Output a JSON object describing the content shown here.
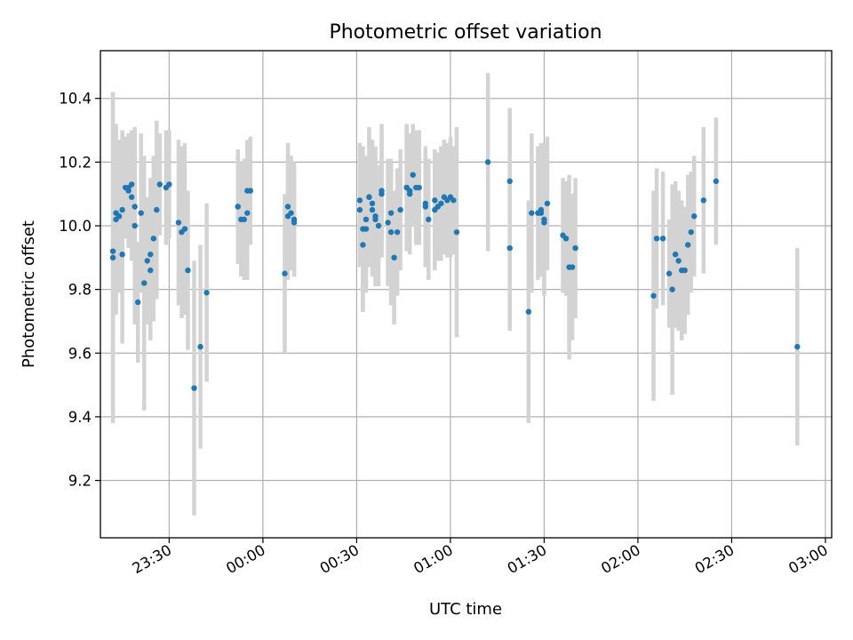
{
  "chart_data": {
    "type": "scatter",
    "title": "Photometric offset variation",
    "xlabel": "UTC time",
    "ylabel": "Photometric offset",
    "x_unit": "UTC time of day",
    "xlim": [
      "23:08",
      "03:02"
    ],
    "ylim": [
      9.02,
      10.55
    ],
    "x_ticks": [
      "23:30",
      "00:00",
      "00:30",
      "01:00",
      "01:30",
      "02:00",
      "02:30",
      "03:00"
    ],
    "y_ticks": [
      "9.2",
      "9.4",
      "9.6",
      "9.8",
      "10.0",
      "10.2",
      "10.4"
    ],
    "y_tick_values": [
      9.2,
      9.4,
      9.6,
      9.8,
      10.0,
      10.2,
      10.4
    ],
    "grid": true,
    "colors": {
      "marker": "#1f77b4",
      "errorbar": "#d3d3d3",
      "grid": "#b0b0b0"
    },
    "series": [
      {
        "marker": "dot",
        "error_bars": "vertical",
        "points": [
          {
            "x": "23:12",
            "y": 9.9,
            "err": 0.52
          },
          {
            "x": "23:12",
            "y": 9.92,
            "err": 0.5
          },
          {
            "x": "23:13",
            "y": 10.02,
            "err": 0.3
          },
          {
            "x": "23:13",
            "y": 10.04,
            "err": 0.26
          },
          {
            "x": "23:14",
            "y": 10.03,
            "err": 0.24
          },
          {
            "x": "23:15",
            "y": 9.91,
            "err": 0.28
          },
          {
            "x": "23:15",
            "y": 10.05,
            "err": 0.25
          },
          {
            "x": "23:16",
            "y": 10.12,
            "err": 0.16
          },
          {
            "x": "23:17",
            "y": 10.12,
            "err": 0.17
          },
          {
            "x": "23:17",
            "y": 10.11,
            "err": 0.18
          },
          {
            "x": "23:18",
            "y": 10.09,
            "err": 0.2
          },
          {
            "x": "23:18",
            "y": 10.13,
            "err": 0.17
          },
          {
            "x": "23:19",
            "y": 10.06,
            "err": 0.24
          },
          {
            "x": "23:19",
            "y": 10.0,
            "err": 0.31
          },
          {
            "x": "23:20",
            "y": 9.76,
            "err": 0.19
          },
          {
            "x": "23:21",
            "y": 10.04,
            "err": 0.25
          },
          {
            "x": "23:22",
            "y": 9.82,
            "err": 0.4
          },
          {
            "x": "23:23",
            "y": 9.89,
            "err": 0.2
          },
          {
            "x": "23:24",
            "y": 9.86,
            "err": 0.22
          },
          {
            "x": "23:24",
            "y": 9.91,
            "err": 0.24
          },
          {
            "x": "23:25",
            "y": 9.96,
            "err": 0.26
          },
          {
            "x": "23:26",
            "y": 10.05,
            "err": 0.28
          },
          {
            "x": "23:27",
            "y": 10.13,
            "err": 0.16
          },
          {
            "x": "23:29",
            "y": 10.12,
            "err": 0.18
          },
          {
            "x": "23:30",
            "y": 10.13,
            "err": 0.17
          },
          {
            "x": "23:33",
            "y": 10.01,
            "err": 0.26
          },
          {
            "x": "23:34",
            "y": 9.98,
            "err": 0.27
          },
          {
            "x": "23:35",
            "y": 9.99,
            "err": 0.27
          },
          {
            "x": "23:36",
            "y": 9.86,
            "err": 0.25
          },
          {
            "x": "23:38",
            "y": 9.49,
            "err": 0.4
          },
          {
            "x": "23:40",
            "y": 9.62,
            "err": 0.32
          },
          {
            "x": "23:42",
            "y": 9.79,
            "err": 0.28
          },
          {
            "x": "23:52",
            "y": 10.06,
            "err": 0.18
          },
          {
            "x": "23:52",
            "y": 10.06,
            "err": 0.18
          },
          {
            "x": "23:53",
            "y": 10.02,
            "err": 0.18
          },
          {
            "x": "23:54",
            "y": 10.02,
            "err": 0.19
          },
          {
            "x": "23:55",
            "y": 10.04,
            "err": 0.21
          },
          {
            "x": "23:55",
            "y": 10.11,
            "err": 0.16
          },
          {
            "x": "23:56",
            "y": 10.11,
            "err": 0.17
          },
          {
            "x": "00:07",
            "y": 9.85,
            "err": 0.25
          },
          {
            "x": "00:08",
            "y": 10.03,
            "err": 0.2
          },
          {
            "x": "00:08",
            "y": 10.06,
            "err": 0.2
          },
          {
            "x": "00:09",
            "y": 10.04,
            "err": 0.18
          },
          {
            "x": "00:10",
            "y": 10.02,
            "err": 0.18
          },
          {
            "x": "00:10",
            "y": 10.01,
            "err": 0.17
          },
          {
            "x": "00:31",
            "y": 10.08,
            "err": 0.18
          },
          {
            "x": "00:31",
            "y": 10.05,
            "err": 0.18
          },
          {
            "x": "00:32",
            "y": 9.94,
            "err": 0.21
          },
          {
            "x": "00:32",
            "y": 9.99,
            "err": 0.26
          },
          {
            "x": "00:33",
            "y": 9.99,
            "err": 0.2
          },
          {
            "x": "00:33",
            "y": 10.02,
            "err": 0.2
          },
          {
            "x": "00:34",
            "y": 10.09,
            "err": 0.2
          },
          {
            "x": "00:34",
            "y": 10.09,
            "err": 0.22
          },
          {
            "x": "00:35",
            "y": 10.07,
            "err": 0.2
          },
          {
            "x": "00:35",
            "y": 10.05,
            "err": 0.21
          },
          {
            "x": "00:36",
            "y": 10.02,
            "err": 0.19
          },
          {
            "x": "00:36",
            "y": 10.03,
            "err": 0.22
          },
          {
            "x": "00:37",
            "y": 10.0,
            "err": 0.19
          },
          {
            "x": "00:38",
            "y": 10.1,
            "err": 0.19
          },
          {
            "x": "00:38",
            "y": 10.11,
            "err": 0.21
          },
          {
            "x": "00:40",
            "y": 10.01,
            "err": 0.2
          },
          {
            "x": "00:41",
            "y": 10.04,
            "err": 0.16
          },
          {
            "x": "00:41",
            "y": 9.98,
            "err": 0.23
          },
          {
            "x": "00:42",
            "y": 9.9,
            "err": 0.21
          },
          {
            "x": "00:43",
            "y": 9.98,
            "err": 0.2
          },
          {
            "x": "00:44",
            "y": 10.05,
            "err": 0.19
          },
          {
            "x": "00:46",
            "y": 10.12,
            "err": 0.2
          },
          {
            "x": "00:46",
            "y": 10.12,
            "err": 0.19
          },
          {
            "x": "00:47",
            "y": 10.11,
            "err": 0.18
          },
          {
            "x": "00:47",
            "y": 10.1,
            "err": 0.19
          },
          {
            "x": "00:48",
            "y": 10.16,
            "err": 0.16
          },
          {
            "x": "00:49",
            "y": 10.12,
            "err": 0.18
          },
          {
            "x": "00:50",
            "y": 10.12,
            "err": 0.18
          },
          {
            "x": "00:52",
            "y": 10.07,
            "err": 0.16
          },
          {
            "x": "00:52",
            "y": 10.06,
            "err": 0.19
          },
          {
            "x": "00:53",
            "y": 10.02,
            "err": 0.19
          },
          {
            "x": "00:55",
            "y": 10.05,
            "err": 0.19
          },
          {
            "x": "00:55",
            "y": 10.08,
            "err": 0.16
          },
          {
            "x": "00:56",
            "y": 10.06,
            "err": 0.17
          },
          {
            "x": "00:57",
            "y": 10.07,
            "err": 0.18
          },
          {
            "x": "00:58",
            "y": 10.09,
            "err": 0.18
          },
          {
            "x": "00:59",
            "y": 10.08,
            "err": 0.18
          },
          {
            "x": "01:00",
            "y": 10.09,
            "err": 0.19
          },
          {
            "x": "01:01",
            "y": 10.08,
            "err": 0.17
          },
          {
            "x": "01:02",
            "y": 9.98,
            "err": 0.33
          },
          {
            "x": "01:12",
            "y": 10.2,
            "err": 0.28
          },
          {
            "x": "01:19",
            "y": 10.14,
            "err": 0.23
          },
          {
            "x": "01:19",
            "y": 9.93,
            "err": 0.26
          },
          {
            "x": "01:25",
            "y": 9.73,
            "err": 0.35
          },
          {
            "x": "01:26",
            "y": 10.04,
            "err": 0.25
          },
          {
            "x": "01:28",
            "y": 10.04,
            "err": 0.21
          },
          {
            "x": "01:29",
            "y": 10.05,
            "err": 0.21
          },
          {
            "x": "01:29",
            "y": 10.04,
            "err": 0.2
          },
          {
            "x": "01:30",
            "y": 10.01,
            "err": 0.22
          },
          {
            "x": "01:30",
            "y": 10.02,
            "err": 0.24
          },
          {
            "x": "01:31",
            "y": 10.07,
            "err": 0.21
          },
          {
            "x": "01:36",
            "y": 9.97,
            "err": 0.18
          },
          {
            "x": "01:37",
            "y": 9.96,
            "err": 0.18
          },
          {
            "x": "01:38",
            "y": 9.87,
            "err": 0.29
          },
          {
            "x": "01:39",
            "y": 9.87,
            "err": 0.23
          },
          {
            "x": "01:40",
            "y": 9.93,
            "err": 0.22
          },
          {
            "x": "02:05",
            "y": 9.78,
            "err": 0.33
          },
          {
            "x": "02:06",
            "y": 9.96,
            "err": 0.22
          },
          {
            "x": "02:08",
            "y": 9.96,
            "err": 0.21
          },
          {
            "x": "02:10",
            "y": 9.85,
            "err": 0.17
          },
          {
            "x": "02:11",
            "y": 9.8,
            "err": 0.33
          },
          {
            "x": "02:12",
            "y": 9.91,
            "err": 0.23
          },
          {
            "x": "02:13",
            "y": 9.89,
            "err": 0.22
          },
          {
            "x": "02:14",
            "y": 9.86,
            "err": 0.22
          },
          {
            "x": "02:15",
            "y": 9.86,
            "err": 0.2
          },
          {
            "x": "02:16",
            "y": 9.94,
            "err": 0.22
          },
          {
            "x": "02:17",
            "y": 9.98,
            "err": 0.19
          },
          {
            "x": "02:18",
            "y": 10.03,
            "err": 0.19
          },
          {
            "x": "02:21",
            "y": 10.08,
            "err": 0.23
          },
          {
            "x": "02:25",
            "y": 10.14,
            "err": 0.2
          },
          {
            "x": "02:51",
            "y": 9.62,
            "err": 0.31
          }
        ]
      }
    ]
  }
}
